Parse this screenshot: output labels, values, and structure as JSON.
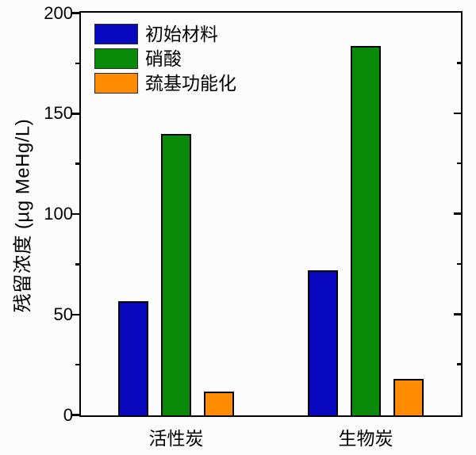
{
  "chart_data": {
    "type": "bar",
    "title": "",
    "categories": [
      "活性炭",
      "生物炭"
    ],
    "series": [
      {
        "name": "初始材料",
        "color": "#0808be",
        "pattern": "solid",
        "values": [
          57,
          72
        ]
      },
      {
        "name": "硝酸",
        "color": "#098a09",
        "pattern": "solid",
        "values": [
          140,
          184
        ]
      },
      {
        "name": "巯基功能化",
        "color": "#ff8c00",
        "pattern": "dots",
        "values": [
          12,
          18
        ]
      }
    ],
    "xlabel": "",
    "ylabel": "残留浓度 (µg MeHg/L)",
    "ylim": [
      0,
      200
    ],
    "yticks_major": [
      0,
      50,
      100,
      150,
      200
    ],
    "yticks_minor": [
      25,
      75,
      125,
      175
    ],
    "grid": false,
    "legend_position": "top-left",
    "frame_color": "#000000",
    "background_color": "#fcfcfc"
  }
}
